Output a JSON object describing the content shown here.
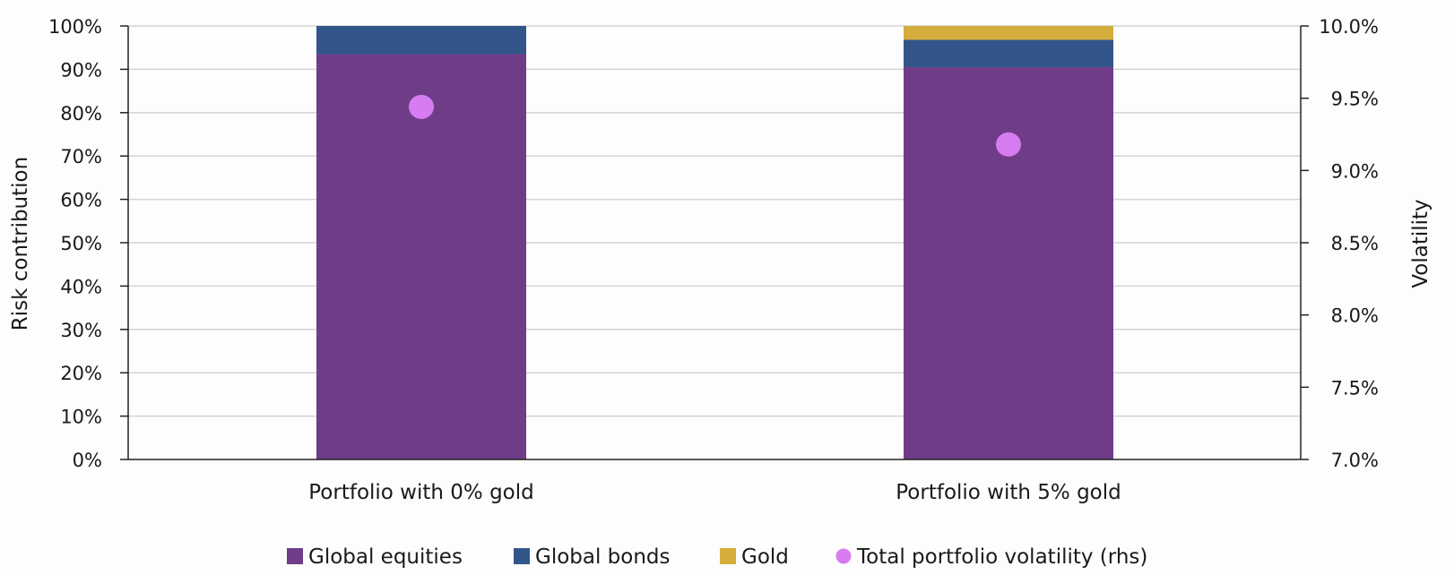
{
  "chart_data": {
    "type": "bar",
    "stacked": true,
    "categories": [
      "Portfolio with 0% gold",
      "Portfolio with 5% gold"
    ],
    "series": [
      {
        "name": "Global equities",
        "values": [
          93.5,
          90.5
        ],
        "color": "#6f3d88"
      },
      {
        "name": "Global bonds",
        "values": [
          6.5,
          6.3
        ],
        "color": "#33568a"
      },
      {
        "name": "Gold",
        "values": [
          0,
          3.2
        ],
        "color": "#d4ad3c"
      }
    ],
    "line_series": {
      "name": "Total portfolio volatility (rhs)",
      "values": [
        9.44,
        9.18
      ],
      "color": "#d77bf0",
      "marker": "circle"
    },
    "ylabel": "Risk contribution",
    "y2label": "Volatility",
    "ylim": [
      0,
      100
    ],
    "y2lim": [
      7.0,
      10.0
    ],
    "yticks": [
      "0%",
      "10%",
      "20%",
      "30%",
      "40%",
      "50%",
      "60%",
      "70%",
      "80%",
      "90%",
      "100%"
    ],
    "y2ticks": [
      "7.0%",
      "7.5%",
      "8.0%",
      "8.5%",
      "9.0%",
      "9.5%",
      "10.0%"
    ],
    "grid": true,
    "legend": "bottom"
  }
}
